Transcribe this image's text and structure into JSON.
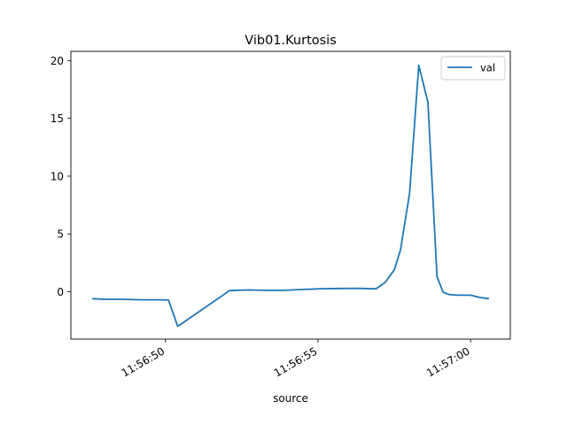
{
  "chart_data": {
    "type": "line",
    "title": "Vib01.Kurtosis",
    "xlabel": "source",
    "ylabel": "",
    "x_unit": "time (HH:MM:SS)",
    "xlim": [
      "11:56:46.9",
      "11:57:01.3"
    ],
    "ylim": [
      -4.1,
      20.8
    ],
    "x_ticks": [
      {
        "t": "11:56:50",
        "label": "11:56:50"
      },
      {
        "t": "11:56:55",
        "label": "11:56:55"
      },
      {
        "t": "11:57:00",
        "label": "11:57:00"
      }
    ],
    "y_ticks": [
      {
        "value": 0,
        "label": "0"
      },
      {
        "value": 5,
        "label": "5"
      },
      {
        "value": 10,
        "label": "10"
      },
      {
        "value": 15,
        "label": "15"
      },
      {
        "value": 20,
        "label": "20"
      }
    ],
    "legend": {
      "position": "top-right",
      "entries": [
        "val"
      ]
    },
    "grid": false,
    "series": [
      {
        "name": "val",
        "color": "#1f77b4",
        "points": [
          {
            "t": "11:56:47.6",
            "y": -0.6
          },
          {
            "t": "11:56:48.0",
            "y": -0.65
          },
          {
            "t": "11:56:48.6",
            "y": -0.65
          },
          {
            "t": "11:56:49.2",
            "y": -0.7
          },
          {
            "t": "11:56:49.8",
            "y": -0.7
          },
          {
            "t": "11:56:50.1",
            "y": -0.72
          },
          {
            "t": "11:56:50.4",
            "y": -3.0
          },
          {
            "t": "11:56:52.1",
            "y": 0.1
          },
          {
            "t": "11:56:52.7",
            "y": 0.15
          },
          {
            "t": "11:56:53.3",
            "y": 0.12
          },
          {
            "t": "11:56:53.9",
            "y": 0.12
          },
          {
            "t": "11:56:54.5",
            "y": 0.2
          },
          {
            "t": "11:56:55.1",
            "y": 0.25
          },
          {
            "t": "11:56:55.7",
            "y": 0.28
          },
          {
            "t": "11:56:56.3",
            "y": 0.3
          },
          {
            "t": "11:56:56.9",
            "y": 0.25
          },
          {
            "t": "11:56:57.2",
            "y": 0.8
          },
          {
            "t": "11:56:57.5",
            "y": 1.9
          },
          {
            "t": "11:56:57.7",
            "y": 3.6
          },
          {
            "t": "11:56:58.0",
            "y": 8.5
          },
          {
            "t": "11:56:58.3",
            "y": 19.6
          },
          {
            "t": "11:56:58.6",
            "y": 16.4
          },
          {
            "t": "11:56:58.9",
            "y": 1.3
          },
          {
            "t": "11:56:59.1",
            "y": -0.05
          },
          {
            "t": "11:56:59.3",
            "y": -0.25
          },
          {
            "t": "11:56:59.6",
            "y": -0.3
          },
          {
            "t": "11:57:00.0",
            "y": -0.3
          },
          {
            "t": "11:57:00.3",
            "y": -0.5
          },
          {
            "t": "11:57:00.6",
            "y": -0.6
          }
        ]
      }
    ]
  }
}
